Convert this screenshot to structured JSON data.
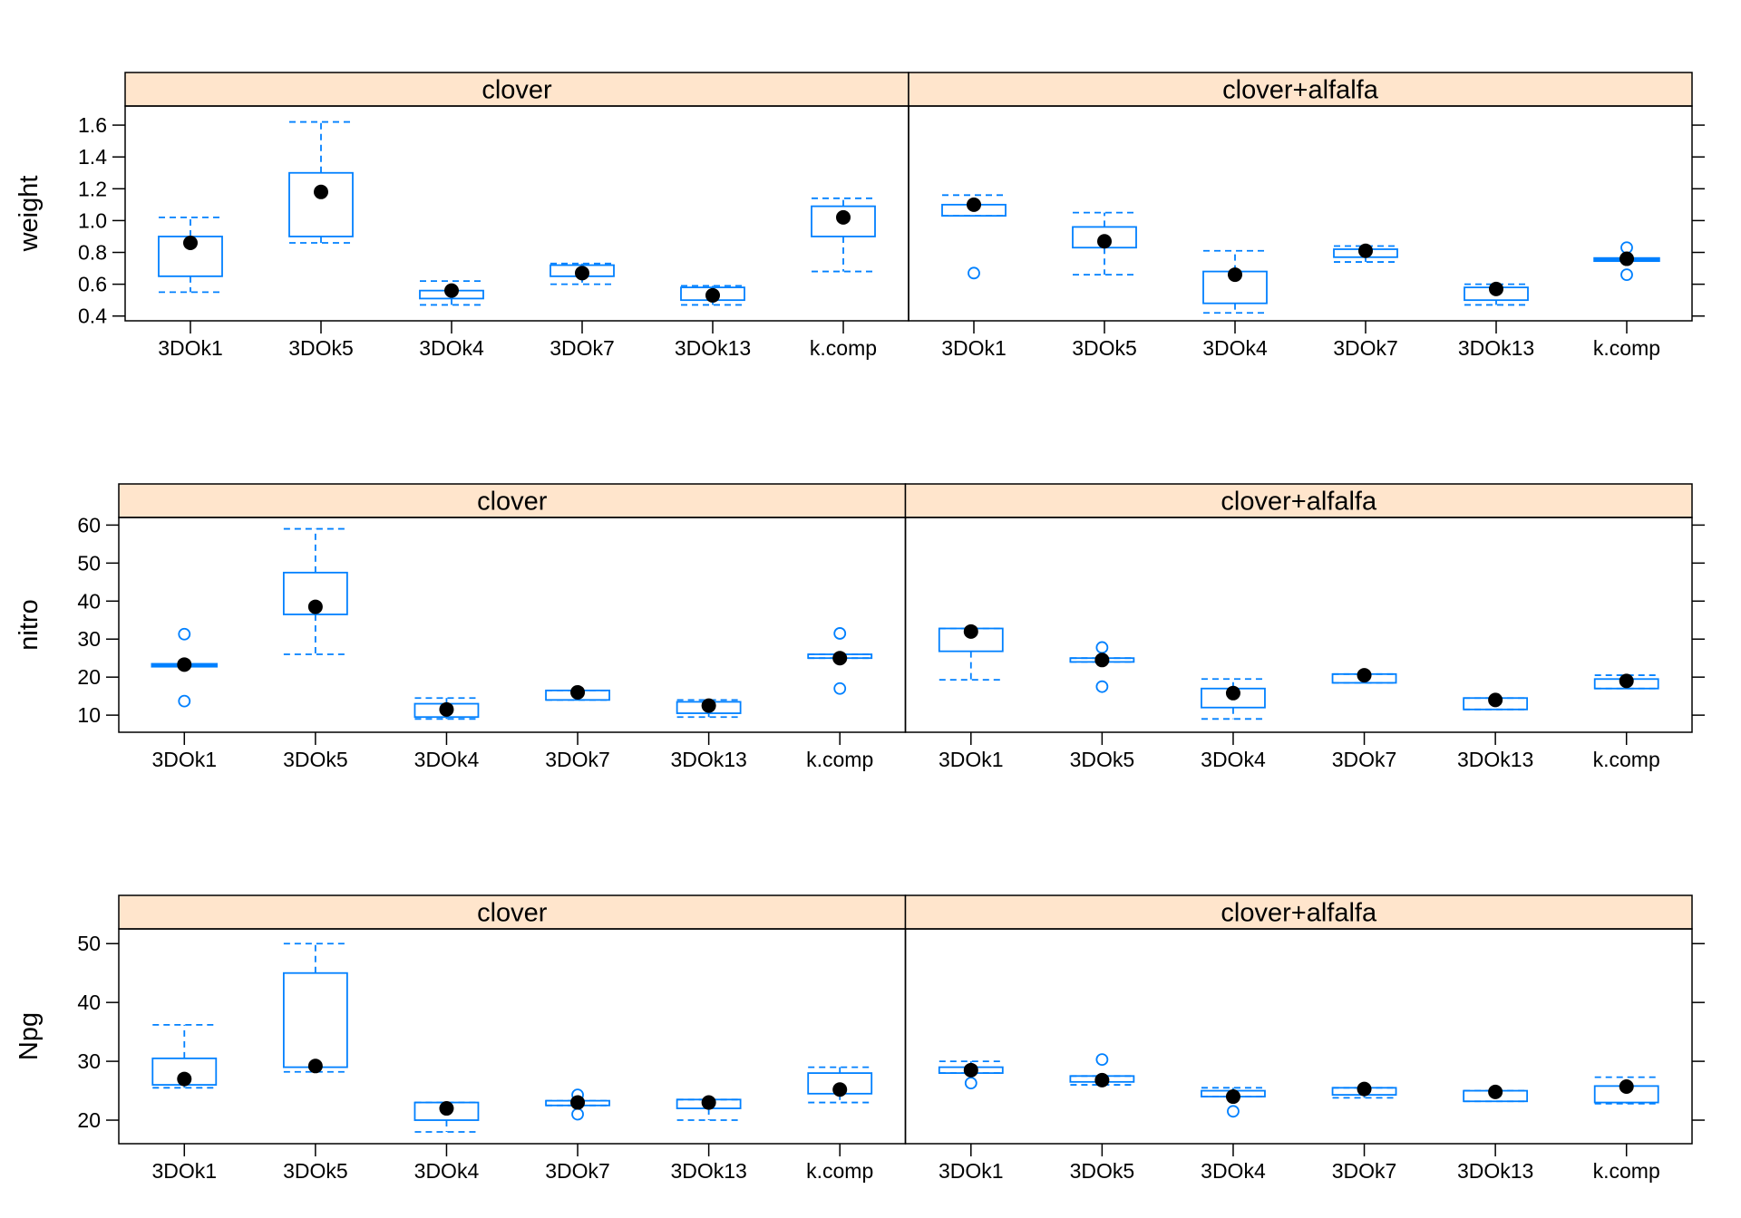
{
  "chart_data": {
    "type": "boxplot",
    "groups": [
      "clover",
      "clover+alfalfa"
    ],
    "categories": [
      "3DOk1",
      "3DOk5",
      "3DOk4",
      "3DOk7",
      "3DOk13",
      "k.comp"
    ],
    "colors": {
      "box": "#0080ff",
      "mean_point": "#000000",
      "strip_fill": "#ffe5cc",
      "frame": "#000000"
    },
    "panels_rows": [
      {
        "ylabel": "weight",
        "yticks": [
          0.4,
          0.6,
          0.8,
          1.0,
          1.2,
          1.4,
          1.6
        ],
        "yticklabels": [
          "0.4",
          "0.6",
          "0.8",
          "1.0",
          "1.2",
          "1.4",
          "1.6"
        ],
        "ylim": [
          0.37,
          1.72
        ],
        "data": {
          "clover": [
            {
              "lo": 0.55,
              "q1": 0.65,
              "med": 0.86,
              "q3": 0.9,
              "hi": 1.02,
              "mean": 0.86,
              "out": []
            },
            {
              "lo": 0.86,
              "q1": 0.9,
              "med": 1.18,
              "q3": 1.3,
              "hi": 1.62,
              "mean": 1.18,
              "out": []
            },
            {
              "lo": 0.47,
              "q1": 0.51,
              "med": 0.55,
              "q3": 0.56,
              "hi": 0.62,
              "mean": 0.56,
              "out": []
            },
            {
              "lo": 0.6,
              "q1": 0.65,
              "med": 0.68,
              "q3": 0.72,
              "hi": 0.73,
              "mean": 0.67,
              "out": []
            },
            {
              "lo": 0.47,
              "q1": 0.5,
              "med": 0.53,
              "q3": 0.58,
              "hi": 0.59,
              "mean": 0.53,
              "out": []
            },
            {
              "lo": 0.68,
              "q1": 0.9,
              "med": 1.03,
              "q3": 1.09,
              "hi": 1.14,
              "mean": 1.02,
              "out": []
            }
          ],
          "clover+alfalfa": [
            {
              "lo": 1.03,
              "q1": 1.03,
              "med": 1.1,
              "q3": 1.1,
              "hi": 1.16,
              "mean": 1.1,
              "out": [
                0.67
              ]
            },
            {
              "lo": 0.66,
              "q1": 0.83,
              "med": 0.87,
              "q3": 0.96,
              "hi": 1.05,
              "mean": 0.87,
              "out": []
            },
            {
              "lo": 0.42,
              "q1": 0.48,
              "med": 0.66,
              "q3": 0.68,
              "hi": 0.81,
              "mean": 0.66,
              "out": []
            },
            {
              "lo": 0.74,
              "q1": 0.77,
              "med": 0.8,
              "q3": 0.82,
              "hi": 0.84,
              "mean": 0.81,
              "out": []
            },
            {
              "lo": 0.47,
              "q1": 0.5,
              "med": 0.57,
              "q3": 0.58,
              "hi": 0.6,
              "mean": 0.57,
              "out": []
            },
            {
              "lo": 0.75,
              "q1": 0.75,
              "med": 0.75,
              "q3": 0.76,
              "hi": 0.76,
              "mean": 0.76,
              "out": [
                0.83,
                0.66
              ]
            }
          ]
        }
      },
      {
        "ylabel": "nitro",
        "yticks": [
          10,
          20,
          30,
          40,
          50,
          60
        ],
        "yticklabels": [
          "10",
          "20",
          "30",
          "40",
          "50",
          "60"
        ],
        "ylim": [
          5.5,
          62
        ],
        "data": {
          "clover": [
            {
              "lo": 23.0,
              "q1": 23.0,
              "med": 23.0,
              "q3": 23.3,
              "hi": 23.3,
              "mean": 23.3,
              "out": [
                31.3,
                13.7
              ]
            },
            {
              "lo": 26.0,
              "q1": 36.5,
              "med": 38.5,
              "q3": 47.5,
              "hi": 59.0,
              "mean": 38.5,
              "out": []
            },
            {
              "lo": 9.0,
              "q1": 9.5,
              "med": 11.0,
              "q3": 13.0,
              "hi": 14.5,
              "mean": 11.5,
              "out": []
            },
            {
              "lo": 14.0,
              "q1": 14.0,
              "med": 16.0,
              "q3": 16.5,
              "hi": 16.5,
              "mean": 16.0,
              "out": []
            },
            {
              "lo": 9.5,
              "q1": 10.5,
              "med": 12.0,
              "q3": 13.5,
              "hi": 14.0,
              "mean": 12.5,
              "out": []
            },
            {
              "lo": 25.0,
              "q1": 25.0,
              "med": 25.5,
              "q3": 26.0,
              "hi": 26.0,
              "mean": 25.0,
              "out": [
                31.5,
                17.0
              ]
            }
          ],
          "clover+alfalfa": [
            {
              "lo": 19.3,
              "q1": 26.8,
              "med": 32.0,
              "q3": 32.8,
              "hi": 32.8,
              "mean": 32.0,
              "out": []
            },
            {
              "lo": 24.0,
              "q1": 24.0,
              "med": 25.0,
              "q3": 25.0,
              "hi": 25.0,
              "mean": 24.5,
              "out": [
                27.8,
                17.5
              ]
            },
            {
              "lo": 9.0,
              "q1": 12.0,
              "med": 15.5,
              "q3": 17.0,
              "hi": 19.5,
              "mean": 15.8,
              "out": []
            },
            {
              "lo": 18.5,
              "q1": 18.5,
              "med": 20.5,
              "q3": 20.8,
              "hi": 20.8,
              "mean": 20.5,
              "out": []
            },
            {
              "lo": 11.5,
              "q1": 11.5,
              "med": 14.0,
              "q3": 14.5,
              "hi": 14.5,
              "mean": 14.0,
              "out": []
            },
            {
              "lo": 17.0,
              "q1": 17.0,
              "med": 19.0,
              "q3": 19.5,
              "hi": 20.5,
              "mean": 19.0,
              "out": []
            }
          ]
        }
      },
      {
        "ylabel": "Npg",
        "yticks": [
          20,
          30,
          40,
          50
        ],
        "yticklabels": [
          "20",
          "30",
          "40",
          "50"
        ],
        "ylim": [
          16,
          52.5
        ],
        "data": {
          "clover": [
            {
              "lo": 25.5,
              "q1": 26.0,
              "med": 27.0,
              "q3": 30.5,
              "hi": 36.2,
              "mean": 27.0,
              "out": []
            },
            {
              "lo": 28.2,
              "q1": 29.0,
              "med": 29.2,
              "q3": 45.0,
              "hi": 50.0,
              "mean": 29.2,
              "out": []
            },
            {
              "lo": 18.0,
              "q1": 20.0,
              "med": 22.0,
              "q3": 23.0,
              "hi": 23.0,
              "mean": 22.0,
              "out": []
            },
            {
              "lo": 22.5,
              "q1": 22.5,
              "med": 23.0,
              "q3": 23.3,
              "hi": 23.3,
              "mean": 23.0,
              "out": [
                24.3,
                21.0
              ]
            },
            {
              "lo": 20.0,
              "q1": 22.0,
              "med": 23.0,
              "q3": 23.5,
              "hi": 23.5,
              "mean": 23.0,
              "out": []
            },
            {
              "lo": 23.0,
              "q1": 24.5,
              "med": 25.0,
              "q3": 28.0,
              "hi": 29.0,
              "mean": 25.2,
              "out": []
            }
          ],
          "clover+alfalfa": [
            {
              "lo": 28.0,
              "q1": 28.0,
              "med": 28.5,
              "q3": 29.0,
              "hi": 30.0,
              "mean": 28.5,
              "out": [
                26.3
              ]
            },
            {
              "lo": 26.0,
              "q1": 26.5,
              "med": 27.0,
              "q3": 27.5,
              "hi": 27.5,
              "mean": 26.8,
              "out": [
                30.3
              ]
            },
            {
              "lo": 24.0,
              "q1": 24.0,
              "med": 24.5,
              "q3": 25.0,
              "hi": 25.5,
              "mean": 24.0,
              "out": [
                21.5
              ]
            },
            {
              "lo": 23.8,
              "q1": 24.3,
              "med": 25.0,
              "q3": 25.5,
              "hi": 25.5,
              "mean": 25.3,
              "out": []
            },
            {
              "lo": 23.2,
              "q1": 23.2,
              "med": 25.0,
              "q3": 25.0,
              "hi": 25.0,
              "mean": 24.8,
              "out": []
            },
            {
              "lo": 22.8,
              "q1": 23.0,
              "med": 25.5,
              "q3": 25.8,
              "hi": 27.3,
              "mean": 25.7,
              "out": []
            }
          ]
        }
      }
    ]
  }
}
